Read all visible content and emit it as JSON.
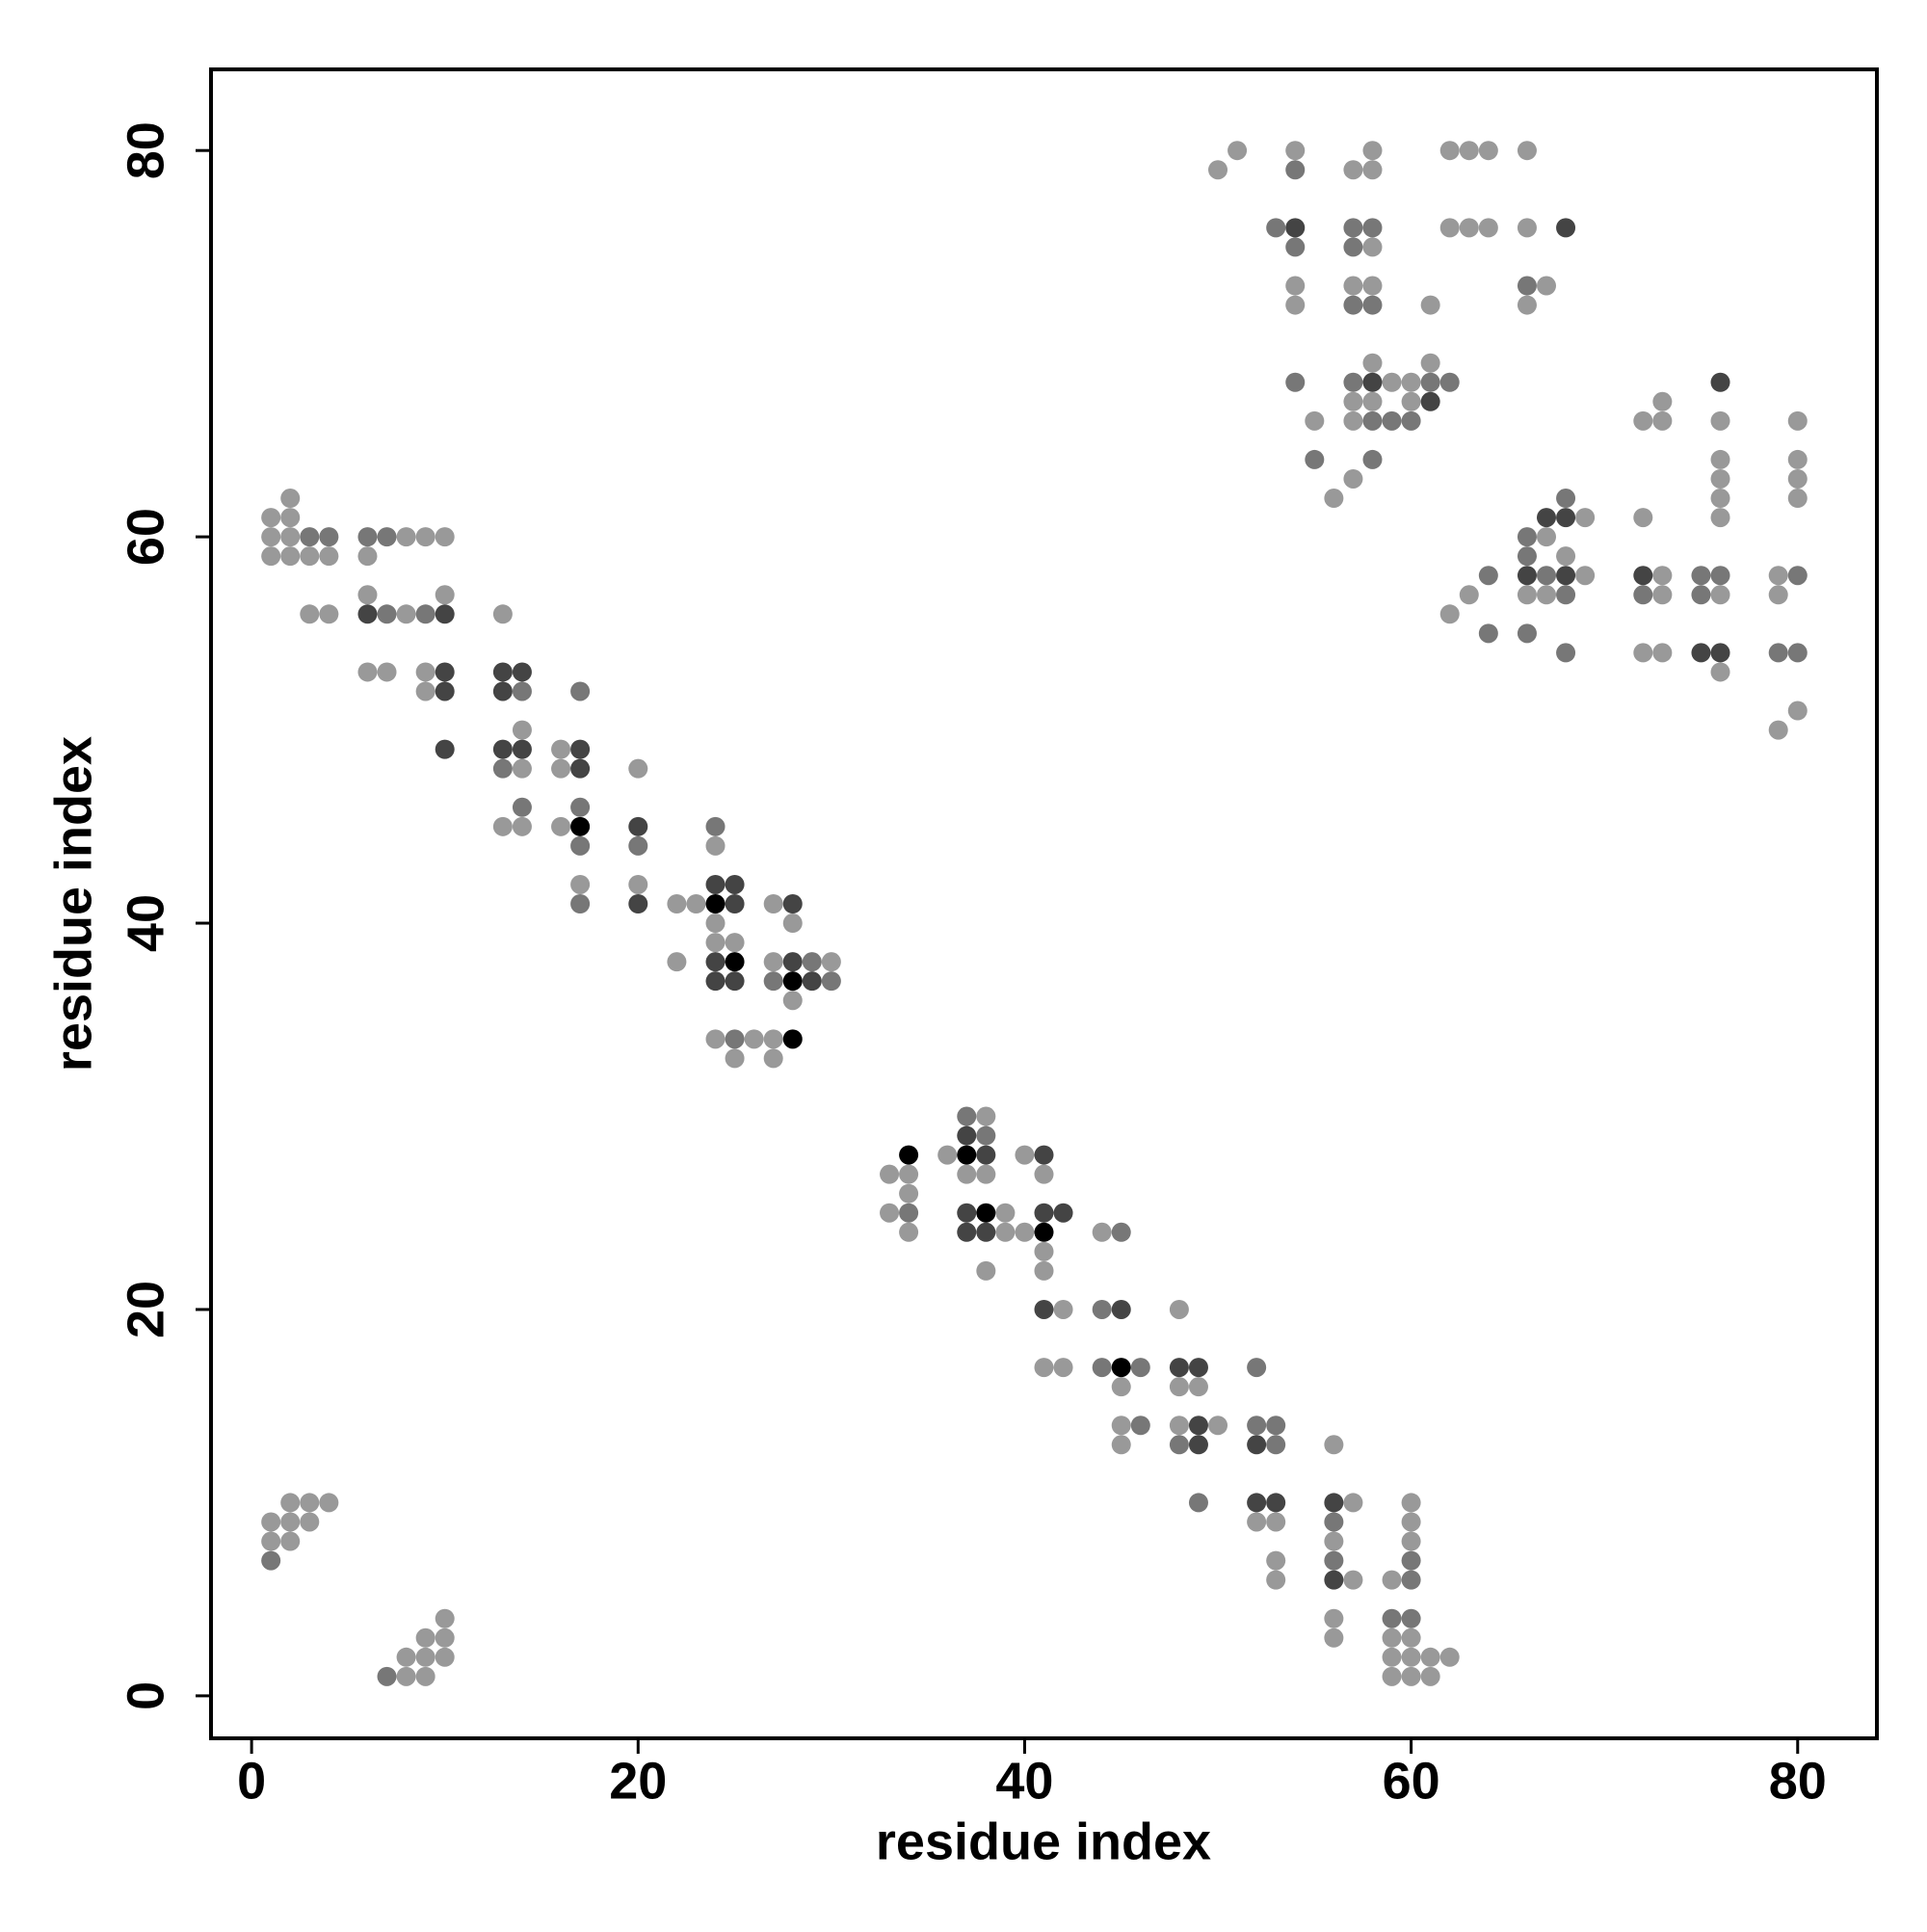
{
  "chart_data": {
    "type": "scatter",
    "xlabel": "residue index",
    "ylabel": "residue index",
    "xlim": [
      -2.1,
      84.1
    ],
    "ylim": [
      -2.2,
      84.2
    ],
    "xticks": [
      0,
      20,
      40,
      60,
      80
    ],
    "yticks": [
      0,
      20,
      40,
      60,
      80
    ],
    "series": [
      {
        "color": "#999999",
        "x": [
          1,
          2,
          2,
          1,
          2,
          1,
          2,
          3,
          4,
          3,
          4,
          6,
          6,
          6,
          7,
          8,
          8,
          9,
          9,
          9,
          10,
          10,
          13,
          13,
          14,
          14,
          14,
          16,
          16,
          16,
          17,
          20,
          20,
          22,
          22,
          23,
          24,
          24,
          24,
          24,
          25,
          25,
          26,
          27,
          27,
          27,
          27,
          28,
          28,
          30,
          33,
          33,
          34,
          34,
          34,
          36,
          37,
          38,
          38,
          38,
          39,
          39,
          40,
          40,
          41,
          41,
          41,
          41,
          42,
          42,
          44,
          45,
          45,
          45,
          48,
          48,
          48,
          49,
          50,
          52,
          53,
          53,
          53,
          56,
          56,
          56,
          56,
          57,
          57,
          59,
          59,
          59,
          59,
          60,
          60,
          60,
          60,
          60,
          60,
          61,
          61,
          62,
          1,
          1,
          2,
          2,
          2,
          3,
          3,
          4,
          8,
          8,
          9,
          9,
          9,
          10,
          10,
          10,
          50,
          51,
          54,
          54,
          54,
          55,
          56,
          57,
          57,
          57,
          57,
          57,
          58,
          58,
          58,
          58,
          58,
          58,
          59,
          60,
          60,
          61,
          61,
          62,
          62,
          63,
          63,
          64,
          64,
          66,
          66,
          66,
          67,
          62,
          63,
          66,
          67,
          67,
          68,
          69,
          69,
          72,
          72,
          72,
          73,
          73,
          73,
          73,
          73,
          76,
          76,
          76,
          76,
          76,
          76,
          76,
          79,
          79,
          79,
          80,
          80,
          80,
          80,
          80
        ],
        "y": [
          61,
          62,
          61,
          60,
          60,
          59,
          59,
          59,
          59,
          56,
          56,
          59,
          57,
          53,
          53,
          60,
          56,
          60,
          53,
          52,
          60,
          57,
          56,
          45,
          50,
          48,
          45,
          49,
          48,
          45,
          42,
          48,
          42,
          41,
          38,
          41,
          44,
          40,
          39,
          34,
          39,
          33,
          34,
          41,
          38,
          34,
          33,
          40,
          36,
          38,
          27,
          25,
          27,
          26,
          24,
          28,
          27,
          30,
          27,
          22,
          25,
          24,
          28,
          24,
          27,
          23,
          22,
          17,
          20,
          17,
          24,
          16,
          14,
          13,
          20,
          16,
          14,
          16,
          14,
          9,
          9,
          7,
          6,
          13,
          8,
          4,
          3,
          10,
          6,
          6,
          3,
          2,
          1,
          10,
          9,
          8,
          3,
          2,
          1,
          2,
          1,
          2,
          9,
          8,
          10,
          9,
          8,
          10,
          9,
          10,
          2,
          1,
          3,
          2,
          1,
          4,
          3,
          2,
          79,
          80,
          80,
          73,
          72,
          66,
          62,
          79,
          73,
          67,
          66,
          63,
          80,
          79,
          75,
          73,
          69,
          67,
          68,
          68,
          67,
          72,
          69,
          80,
          76,
          80,
          76,
          80,
          76,
          80,
          76,
          72,
          73,
          56,
          57,
          57,
          60,
          57,
          59,
          61,
          58,
          66,
          61,
          54,
          67,
          66,
          58,
          57,
          54,
          66,
          64,
          63,
          62,
          61,
          57,
          53,
          58,
          57,
          50,
          66,
          64,
          63,
          62,
          51
        ]
      },
      {
        "color": "#777777",
        "x": [
          3,
          4,
          6,
          7,
          7,
          9,
          13,
          14,
          14,
          17,
          17,
          17,
          17,
          20,
          24,
          25,
          27,
          29,
          30,
          34,
          37,
          38,
          44,
          44,
          45,
          46,
          46,
          48,
          49,
          52,
          52,
          53,
          53,
          56,
          56,
          60,
          60,
          60,
          59,
          1,
          7,
          53,
          54,
          54,
          54,
          55,
          57,
          57,
          57,
          57,
          58,
          58,
          58,
          58,
          59,
          60,
          61,
          62,
          66,
          64,
          64,
          66,
          66,
          66,
          67,
          68,
          68,
          68,
          72,
          75,
          75,
          76,
          79,
          80,
          80
        ],
        "y": [
          60,
          60,
          60,
          60,
          56,
          56,
          48,
          52,
          46,
          52,
          46,
          44,
          41,
          44,
          45,
          34,
          37,
          38,
          37,
          25,
          30,
          29,
          20,
          17,
          24,
          17,
          14,
          13,
          10,
          17,
          14,
          14,
          13,
          9,
          7,
          7,
          6,
          4,
          4,
          7,
          1,
          76,
          79,
          75,
          68,
          64,
          76,
          75,
          72,
          68,
          76,
          72,
          66,
          64,
          66,
          66,
          68,
          68,
          73,
          58,
          55,
          60,
          59,
          55,
          58,
          62,
          57,
          54,
          57,
          58,
          57,
          58,
          54,
          58,
          54
        ]
      },
      {
        "color": "#444444",
        "x": [
          6,
          10,
          10,
          10,
          10,
          13,
          13,
          13,
          14,
          14,
          17,
          17,
          20,
          20,
          24,
          24,
          24,
          25,
          25,
          25,
          28,
          28,
          29,
          37,
          37,
          37,
          38,
          38,
          41,
          41,
          41,
          42,
          45,
          48,
          49,
          49,
          49,
          52,
          52,
          53,
          56,
          56,
          54,
          58,
          61,
          68,
          66,
          67,
          68,
          68,
          72,
          75,
          76,
          76
        ],
        "y": [
          56,
          56,
          53,
          52,
          49,
          53,
          52,
          49,
          53,
          49,
          49,
          48,
          45,
          41,
          42,
          38,
          37,
          42,
          41,
          37,
          41,
          38,
          37,
          29,
          25,
          24,
          28,
          24,
          28,
          25,
          20,
          25,
          20,
          17,
          17,
          14,
          13,
          13,
          10,
          10,
          10,
          6,
          76,
          68,
          67,
          76,
          58,
          61,
          61,
          58,
          58,
          54,
          68,
          54
        ]
      },
      {
        "color": "#000000",
        "x": [
          17,
          24,
          25,
          28,
          28,
          34,
          37,
          38,
          41,
          45
        ],
        "y": [
          45,
          41,
          38,
          37,
          34,
          28,
          28,
          25,
          24,
          17
        ]
      }
    ]
  }
}
